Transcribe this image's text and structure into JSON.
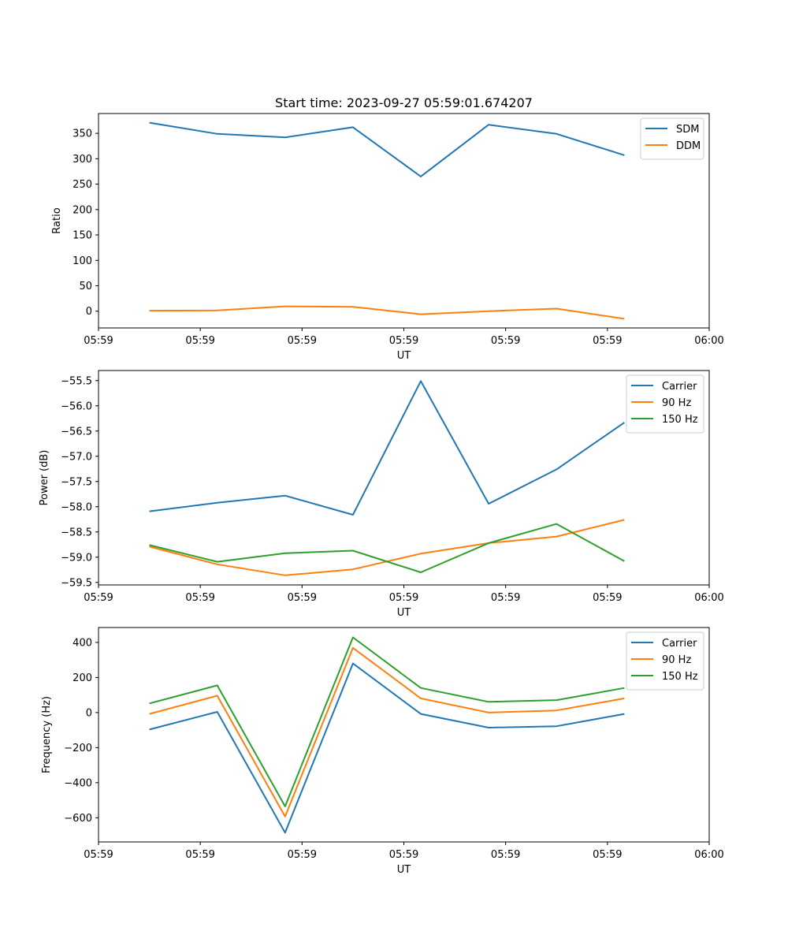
{
  "figure": {
    "title": "Start time: 2023-09-27 05:59:01.674207"
  },
  "chart_data": [
    {
      "type": "line",
      "xlabel": "UT",
      "ylabel": "Ratio",
      "x_tick_labels": [
        "05:59",
        "05:59",
        "05:59",
        "05:59",
        "05:59",
        "05:59",
        "06:00"
      ],
      "x": [
        1,
        2,
        3,
        4,
        5,
        6,
        7,
        8
      ],
      "xlim": [
        0.25,
        9.25
      ],
      "x_ticks": [
        0.25,
        1.75,
        3.25,
        4.75,
        6.25,
        7.75,
        9.25
      ],
      "ylim": [
        -33,
        389
      ],
      "y_ticks": [
        0,
        50,
        100,
        150,
        200,
        250,
        300,
        350
      ],
      "legend": "top-right",
      "series": [
        {
          "name": "SDM",
          "color": "#1f77b4",
          "values": [
            371,
            349,
            342,
            362,
            265,
            367,
            349,
            307
          ]
        },
        {
          "name": "DDM",
          "color": "#ff7f0e",
          "values": [
            1,
            1.5,
            9.5,
            8.5,
            -6,
            0,
            5,
            -15
          ]
        }
      ]
    },
    {
      "type": "line",
      "xlabel": "UT",
      "ylabel": "Power (dB)",
      "x_tick_labels": [
        "05:59",
        "05:59",
        "05:59",
        "05:59",
        "05:59",
        "05:59",
        "06:00"
      ],
      "x": [
        1,
        2,
        3,
        4,
        5,
        6,
        7,
        8
      ],
      "xlim": [
        0.25,
        9.25
      ],
      "x_ticks": [
        0.25,
        1.75,
        3.25,
        4.75,
        6.25,
        7.75,
        9.25
      ],
      "ylim": [
        -59.55,
        -55.3
      ],
      "y_ticks": [
        -59.5,
        -59.0,
        -58.5,
        -58.0,
        -57.5,
        -57.0,
        -56.5,
        -56.0,
        -55.5
      ],
      "legend": "top-right",
      "series": [
        {
          "name": "Carrier",
          "color": "#1f77b4",
          "values": [
            -58.09,
            -57.92,
            -57.78,
            -58.16,
            -55.51,
            -57.94,
            -57.26,
            -56.33
          ]
        },
        {
          "name": "90 Hz",
          "color": "#ff7f0e",
          "values": [
            -58.79,
            -59.14,
            -59.36,
            -59.24,
            -58.93,
            -58.72,
            -58.59,
            -58.26
          ]
        },
        {
          "name": "150 Hz",
          "color": "#2ca02c",
          "values": [
            -58.76,
            -59.09,
            -58.92,
            -58.87,
            -59.3,
            -58.72,
            -58.34,
            -59.08
          ]
        }
      ]
    },
    {
      "type": "line",
      "xlabel": "UT",
      "ylabel": "Frequency (Hz)",
      "x_tick_labels": [
        "05:59",
        "05:59",
        "05:59",
        "05:59",
        "05:59",
        "05:59",
        "06:00"
      ],
      "x": [
        1,
        2,
        3,
        4,
        5,
        6,
        7,
        8
      ],
      "xlim": [
        0.25,
        9.25
      ],
      "x_ticks": [
        0.25,
        1.75,
        3.25,
        4.75,
        6.25,
        7.75,
        9.25
      ],
      "ylim": [
        -738,
        485
      ],
      "y_ticks": [
        -600,
        -400,
        -200,
        0,
        200,
        400
      ],
      "legend": "top-right",
      "series": [
        {
          "name": "Carrier",
          "color": "#1f77b4",
          "values": [
            -97,
            4,
            -685,
            280,
            -8,
            -86,
            -78,
            -8
          ]
        },
        {
          "name": "90 Hz",
          "color": "#ff7f0e",
          "values": [
            -8,
            96,
            -593,
            369,
            81,
            0,
            12,
            81
          ]
        },
        {
          "name": "150 Hz",
          "color": "#2ca02c",
          "values": [
            52,
            155,
            -535,
            429,
            140,
            61,
            71,
            140
          ]
        }
      ]
    }
  ]
}
